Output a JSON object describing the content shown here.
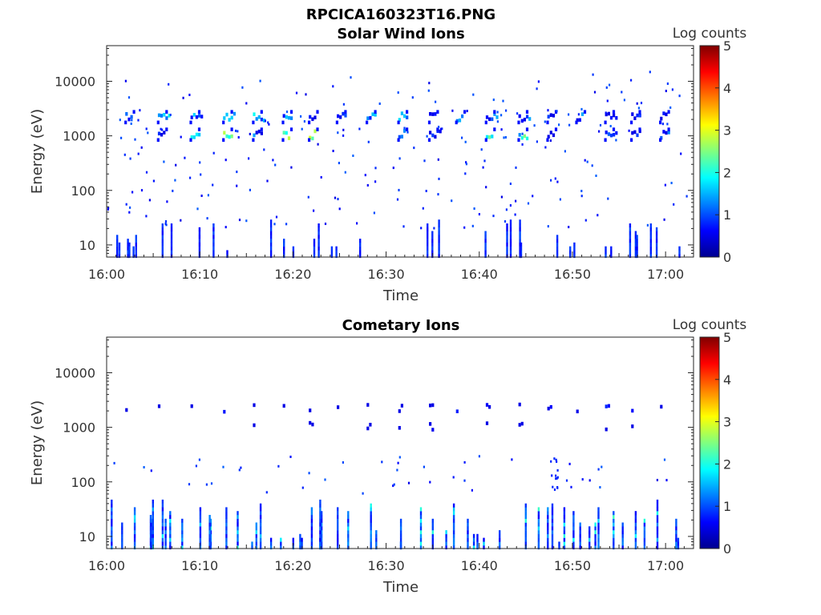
{
  "figure_title": "RPCICA160323T16.PNG",
  "chart_data": [
    {
      "type": "heatmap",
      "title": "Solar Wind Ions",
      "xlabel": "Time",
      "ylabel": "Energy (eV)",
      "x_ticks": [
        "16:00",
        "16:10",
        "16:20",
        "16:30",
        "16:40",
        "16:50",
        "17:00"
      ],
      "x_range": [
        "16:00",
        "17:03"
      ],
      "y_scale": "log",
      "y_ticks": [
        10,
        100,
        1000,
        10000
      ],
      "y_range": [
        6,
        45000
      ],
      "colorbar": {
        "label": "Log counts",
        "range": [
          0,
          5
        ],
        "ticks": [
          0,
          1,
          2,
          3,
          4,
          5
        ]
      },
      "scan_times_min": [
        2.3,
        5.8,
        9.3,
        12.8,
        16.0,
        19.2,
        22.0,
        25.0,
        28.2,
        31.6,
        34.9,
        37.8,
        41.0,
        44.5,
        47.6,
        50.7,
        53.8,
        56.6,
        59.7
      ],
      "peaks": [
        {
          "energy_ev": 2200,
          "log_counts": [
            1.5,
            2.0,
            1.8,
            2.0,
            2.0,
            1.8,
            1.5,
            1.3,
            1.7,
            1.8,
            1.6,
            1.5,
            1.5,
            1.7,
            1.0,
            1.5,
            1.0,
            1.2,
            1.5
          ]
        },
        {
          "energy_ev": 1050,
          "log_counts": [
            0,
            1.0,
            2.5,
            2.8,
            1.5,
            3.0,
            3.0,
            0,
            0,
            1.8,
            1.0,
            0,
            2.5,
            2.5,
            1.0,
            0,
            1.5,
            1.5,
            1.5
          ]
        }
      ],
      "background": {
        "energy_ev_range": [
          20,
          15000
        ],
        "log_counts": "0.5-1 (sparse)"
      },
      "low_energy_band": {
        "energy_ev_range": [
          6,
          30
        ],
        "log_counts": "0.5-1"
      }
    },
    {
      "type": "heatmap",
      "title": "Cometary Ions",
      "xlabel": "Time",
      "ylabel": "Energy (eV)",
      "x_ticks": [
        "16:00",
        "16:10",
        "16:20",
        "16:30",
        "16:40",
        "16:50",
        "17:00"
      ],
      "x_range": [
        "16:00",
        "17:03"
      ],
      "y_scale": "log",
      "y_ticks": [
        10,
        100,
        1000,
        10000
      ],
      "y_range": [
        6,
        45000
      ],
      "colorbar": {
        "label": "Log counts",
        "range": [
          0,
          5
        ],
        "ticks": [
          0,
          1,
          2,
          3,
          4,
          5
        ]
      },
      "scan_times_min": [
        2.3,
        5.8,
        9.3,
        12.8,
        16.0,
        19.2,
        22.0,
        25.0,
        28.2,
        31.6,
        34.9,
        37.8,
        41.0,
        44.5,
        47.6,
        50.7,
        53.8,
        56.6,
        59.7
      ],
      "peaks": [
        {
          "energy_ev": 2250,
          "log_counts": "≈0.7"
        },
        {
          "energy_ev": 1050,
          "log_counts": "≈0.8"
        }
      ],
      "background": {
        "energy_ev_range": [
          60,
          300
        ],
        "log_counts": "0.5-1 (sparse)"
      },
      "low_energy_band": {
        "energy_ev_range": [
          6,
          50
        ],
        "log_counts": "0.5-2"
      }
    }
  ]
}
